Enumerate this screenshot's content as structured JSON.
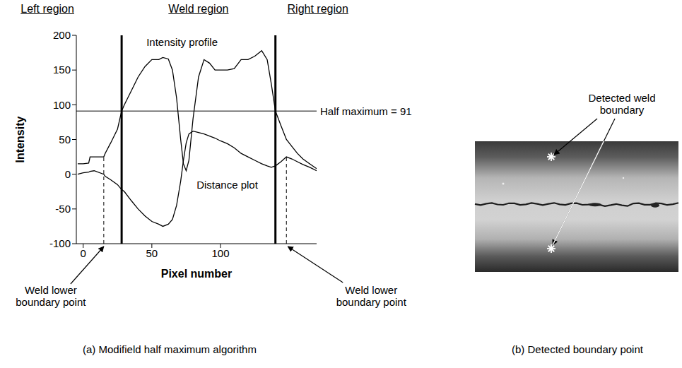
{
  "chart_data": {
    "type": "line",
    "caption": "(a) Modifield half maximum algorithm",
    "x_label": "Pixel number",
    "y_label": "Intensity",
    "x": [
      -4,
      0,
      4,
      5,
      8,
      15,
      16,
      20,
      25,
      28,
      30,
      35,
      40,
      45,
      50,
      55,
      58,
      62,
      65,
      68,
      71,
      73,
      75,
      77,
      80,
      84,
      88,
      92,
      96,
      100,
      105,
      110,
      115,
      120,
      125,
      130,
      134,
      137,
      140,
      144,
      148,
      152,
      156,
      160,
      165,
      170
    ],
    "series": [
      {
        "name": "Intensity profile",
        "color": "#000000",
        "values": [
          15,
          15,
          16,
          25,
          25,
          25,
          30,
          45,
          65,
          91,
          100,
          120,
          140,
          155,
          165,
          165,
          168,
          166,
          150,
          110,
          50,
          15,
          5,
          20,
          80,
          140,
          165,
          160,
          150,
          150,
          150,
          152,
          165,
          165,
          170,
          178,
          165,
          130,
          91,
          70,
          50,
          40,
          30,
          22,
          15,
          8
        ]
      },
      {
        "name": "Distance plot",
        "color": "#000000",
        "values": [
          0,
          2,
          3,
          4,
          5,
          0,
          -3,
          -8,
          -15,
          -22,
          -25,
          -38,
          -50,
          -60,
          -68,
          -72,
          -75,
          -72,
          -65,
          -45,
          -10,
          20,
          45,
          58,
          62,
          60,
          58,
          55,
          52,
          48,
          44,
          38,
          30,
          25,
          20,
          15,
          12,
          10,
          12,
          18,
          25,
          22,
          18,
          14,
          10,
          5
        ]
      }
    ],
    "xlim": [
      -5,
      170
    ],
    "xticks": [
      0,
      50,
      100
    ],
    "ylim": [
      -100,
      200
    ],
    "yticks": [
      -100,
      -50,
      0,
      50,
      100,
      150,
      200
    ],
    "grid": false,
    "regions": [
      "Left region",
      "Weld region",
      "Right region"
    ],
    "region_boundaries": [
      28,
      140
    ],
    "half_maximum": {
      "value": 91,
      "label": "Half maximum = 91"
    },
    "boundary_points": [
      {
        "x": 15,
        "y": 25,
        "label": "Weld lower boundary point"
      },
      {
        "x": 148,
        "y": 25,
        "label": "Weld lower boundary point"
      }
    ]
  },
  "image_panel": {
    "annotation": "Detected weld boundary",
    "caption": "(b) Detected boundary point"
  }
}
